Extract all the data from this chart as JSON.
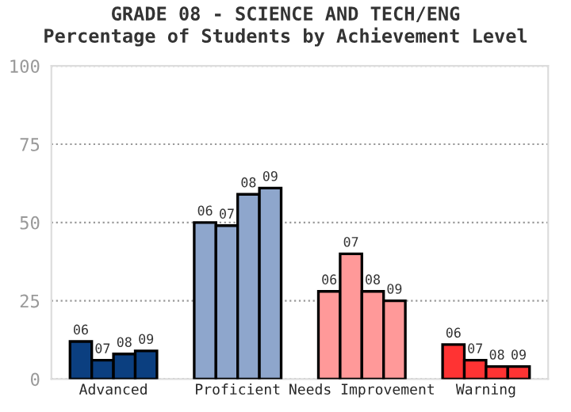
{
  "chart_data": {
    "type": "bar",
    "title": "GRADE 08 - SCIENCE AND TECH/ENG\nPercentage of Students by Achievement Level",
    "categories": [
      "Advanced",
      "Proficient",
      "Needs Improvement",
      "Warning"
    ],
    "series": [
      {
        "name": "06",
        "colors": [
          "#0b3f80",
          "#8ea6cc",
          "#ff9999",
          "#ff3333"
        ],
        "values": [
          12,
          50,
          28,
          11
        ]
      },
      {
        "name": "07",
        "colors": [
          "#0b3f80",
          "#8ea6cc",
          "#ff9999",
          "#ff3333"
        ],
        "values": [
          6,
          49,
          40,
          6
        ]
      },
      {
        "name": "08",
        "colors": [
          "#0b3f80",
          "#8ea6cc",
          "#ff9999",
          "#ff3333"
        ],
        "values": [
          8,
          59,
          28,
          4
        ]
      },
      {
        "name": "09",
        "colors": [
          "#0b3f80",
          "#8ea6cc",
          "#ff9999",
          "#ff3333"
        ],
        "values": [
          9,
          61,
          25,
          4
        ]
      }
    ],
    "ylim": [
      0,
      100
    ],
    "yticks": [
      0,
      25,
      50,
      75,
      100
    ],
    "grid": "y",
    "legend": false
  }
}
